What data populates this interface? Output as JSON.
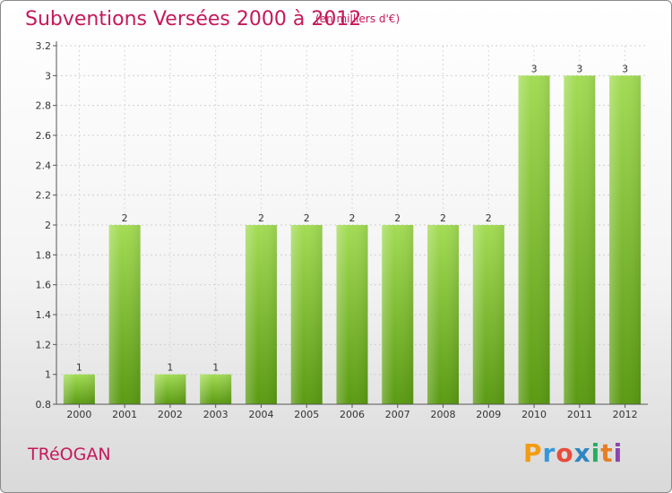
{
  "title": "Subventions Versées 2000 à 2012",
  "subtitle": "(en milliers d'€)",
  "town": "TRéOGAN",
  "logo": {
    "letters": [
      "P",
      "r",
      "o",
      "x",
      "i",
      "t",
      "i"
    ],
    "colors": [
      "#f39c12",
      "#3498db",
      "#e74c3c",
      "#2e86c1",
      "#27ae60",
      "#e67e22",
      "#8e44ad"
    ]
  },
  "colors": {
    "bar": "#7cc42a",
    "bar_dark": "#5a9a12",
    "bar_light": "#a3dc55",
    "accent": "#c4195b"
  },
  "chart_data": {
    "type": "bar",
    "categories": [
      "2000",
      "2001",
      "2002",
      "2003",
      "2004",
      "2005",
      "2006",
      "2007",
      "2008",
      "2009",
      "2010",
      "2011",
      "2012"
    ],
    "values": [
      1,
      2,
      1,
      1,
      2,
      2,
      2,
      2,
      2,
      2,
      3,
      3,
      3
    ],
    "title": "Subventions Versées 2000 à 2012",
    "xlabel": "",
    "ylabel": "",
    "ylim": [
      0.8,
      3.2
    ],
    "yticks": [
      0.8,
      1,
      1.2,
      1.4,
      1.6,
      1.8,
      2,
      2.2,
      2.4,
      2.6,
      2.8,
      3,
      3.2
    ],
    "ytick_labels": [
      "0.8",
      "1",
      "1.2",
      "1.4",
      "1.6",
      "1.8",
      "2",
      "2.2",
      "2.4",
      "2.6",
      "2.8",
      "3",
      "3.2"
    ],
    "grid": true,
    "legend": "none"
  }
}
